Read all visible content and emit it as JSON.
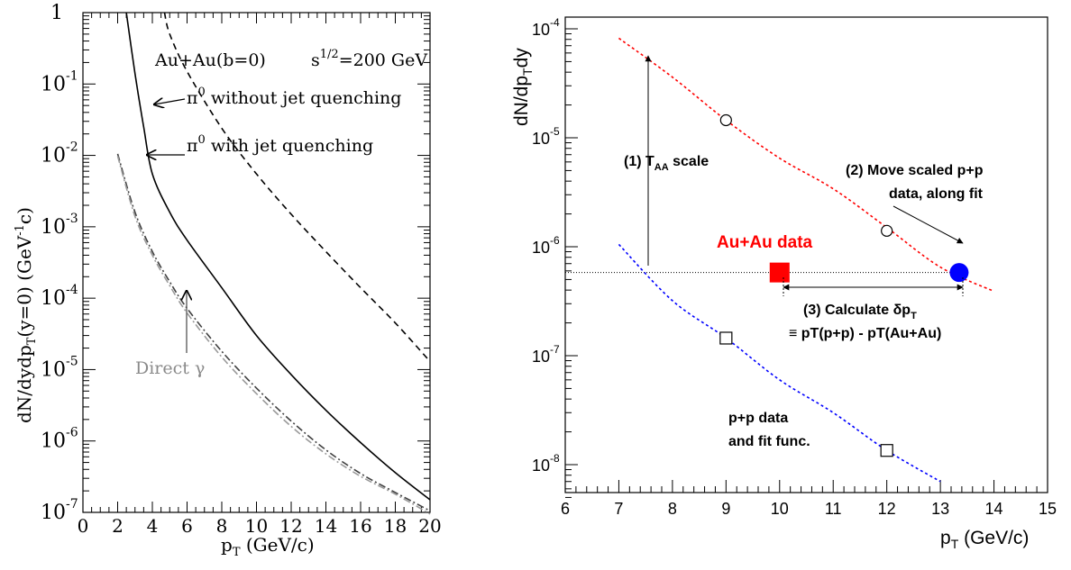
{
  "chart_data": [
    {
      "type": "line",
      "xlabel_main": "p",
      "xlabel_sub": "T",
      "xlabel_tail": " (GeV/c)",
      "ylabel_a": "dN/dydp",
      "ylabel_b": "T",
      "ylabel_c": "(y=0) (GeV",
      "ylabel_d": "-1",
      "ylabel_e": "c)",
      "xlim": [
        0,
        20
      ],
      "ylim": [
        1e-07,
        1
      ],
      "y_scale": "log",
      "x_ticks": [
        "0",
        "2",
        "4",
        "6",
        "8",
        "10",
        "12",
        "14",
        "16",
        "18",
        "20"
      ],
      "y_ticks": [
        {
          "base": "1",
          "exp": ""
        },
        {
          "base": "10",
          "exp": "-1"
        },
        {
          "base": "10",
          "exp": "-2"
        },
        {
          "base": "10",
          "exp": "-3"
        },
        {
          "base": "10",
          "exp": "-4"
        },
        {
          "base": "10",
          "exp": "-5"
        },
        {
          "base": "10",
          "exp": "-6"
        },
        {
          "base": "10",
          "exp": "-7"
        }
      ],
      "annotations": {
        "system": "Au+Au(b=0)",
        "energy_a": "s",
        "energy_b": "1/2",
        "energy_c": "=200 GeV",
        "pi_symbol": "π",
        "pi_sup": "0",
        "without": " without jet quenching",
        "with": " with jet quenching",
        "direct": "Direct γ"
      },
      "series": [
        {
          "style": "dashed",
          "color": "#000000",
          "points": [
            [
              4.7,
              1
            ],
            [
              5,
              0.5
            ],
            [
              6,
              0.15
            ],
            [
              8,
              0.024
            ],
            [
              10,
              0.0055
            ],
            [
              12,
              0.0015
            ],
            [
              14,
              0.00045
            ],
            [
              16,
              0.00014
            ],
            [
              18,
              4.5e-05
            ],
            [
              20,
              1.3e-05
            ]
          ]
        },
        {
          "style": "solid",
          "color": "#000000",
          "points": [
            [
              2.5,
              1
            ],
            [
              3,
              0.14
            ],
            [
              3.5,
              0.025
            ],
            [
              4,
              0.0055
            ],
            [
              5,
              0.0016
            ],
            [
              6,
              0.00065
            ],
            [
              8,
              0.00014
            ],
            [
              10,
              3e-05
            ],
            [
              12,
              8.5e-06
            ],
            [
              14,
              2.7e-06
            ],
            [
              16,
              9.5e-07
            ],
            [
              18,
              3.6e-07
            ],
            [
              20,
              1.5e-07
            ]
          ]
        },
        {
          "style": "dashdot",
          "color": "#404040",
          "points": [
            [
              2,
              0.0105
            ],
            [
              3,
              0.0016
            ],
            [
              4,
              0.00045
            ],
            [
              5,
              0.00017
            ],
            [
              6,
              7.2e-05
            ],
            [
              8,
              1.8e-05
            ],
            [
              10,
              5.5e-06
            ],
            [
              12,
              1.9e-06
            ],
            [
              14,
              7.5e-07
            ],
            [
              16,
              3.5e-07
            ],
            [
              18,
              1.9e-07
            ],
            [
              20,
              1.05e-07
            ]
          ]
        },
        {
          "style": "dashdot",
          "color": "#9a9a9a",
          "points": [
            [
              2,
              0.0098
            ],
            [
              3,
              0.0014
            ],
            [
              4,
              0.0004
            ],
            [
              5,
              0.00015
            ],
            [
              6,
              6.2e-05
            ],
            [
              8,
              1.5e-05
            ],
            [
              10,
              4.6e-06
            ],
            [
              12,
              1.6e-06
            ],
            [
              14,
              6.6e-07
            ],
            [
              16,
              3.2e-07
            ],
            [
              18,
              1.8e-07
            ],
            [
              20,
              9.5e-08
            ]
          ]
        }
      ]
    },
    {
      "type": "scatter",
      "xlabel_main": "p",
      "xlabel_sub": "T",
      "xlabel_tail": " (GeV/c)",
      "ylabel_main": "dN/dp",
      "ylabel_sub": "T",
      "ylabel_tail": "dy",
      "xlim": [
        6,
        15
      ],
      "ylim": [
        5e-09,
        0.0001
      ],
      "y_scale": "log",
      "x_ticks": [
        "6",
        "7",
        "8",
        "9",
        "10",
        "11",
        "12",
        "13",
        "14",
        "15"
      ],
      "y_ticks": [
        {
          "base": "10",
          "exp": "-4",
          "value": 0.0001
        },
        {
          "base": "10",
          "exp": "-5",
          "value": 1e-05
        },
        {
          "base": "10",
          "exp": "-6",
          "value": 1e-06
        },
        {
          "base": "10",
          "exp": "-7",
          "value": 1e-07
        },
        {
          "base": "10",
          "exp": "-8",
          "value": 1e-08
        }
      ],
      "scaled_fit": {
        "color": "#ff0000",
        "points": [
          [
            7,
            8.2e-05
          ],
          [
            8,
            3.6e-05
          ],
          [
            9,
            1.45e-05
          ],
          [
            10,
            6.5e-06
          ],
          [
            11,
            3.4e-06
          ],
          [
            12,
            1.5e-06
          ],
          [
            13,
            6.5e-07
          ],
          [
            14,
            3.9e-07
          ]
        ]
      },
      "pp_fit": {
        "color": "#0000ff",
        "points": [
          [
            7,
            1.05e-06
          ],
          [
            8,
            3.2e-07
          ],
          [
            9,
            1.45e-07
          ],
          [
            10,
            6e-08
          ],
          [
            11,
            3e-08
          ],
          [
            12,
            1.35e-08
          ],
          [
            13,
            7e-09
          ]
        ]
      },
      "scaled_points": [
        [
          9,
          1.45e-05
        ],
        [
          12,
          1.4e-06
        ]
      ],
      "pp_points": [
        [
          9,
          1.45e-07
        ],
        [
          12,
          1.35e-08
        ]
      ],
      "auau_point": {
        "x": 10,
        "y": 5.8e-07,
        "color": "#ff0000"
      },
      "moved_point": {
        "x": 13.35,
        "y": 5.8e-07,
        "color": "#0000ff"
      },
      "level_line_y": 5.8e-07,
      "labels": {
        "taa_a": "(1) T",
        "taa_b": "AA",
        "taa_c": " scale",
        "move_a": "(2) Move scaled p+p",
        "move_b": "data, along fit",
        "auau": "Au+Au data",
        "calc_a": "(3) Calculate δp",
        "calc_b": "T",
        "calc_c": "≡ pT(p+p) - pT(Au+Au)",
        "pp_a": "p+p data",
        "pp_b": "and fit func."
      }
    }
  ]
}
